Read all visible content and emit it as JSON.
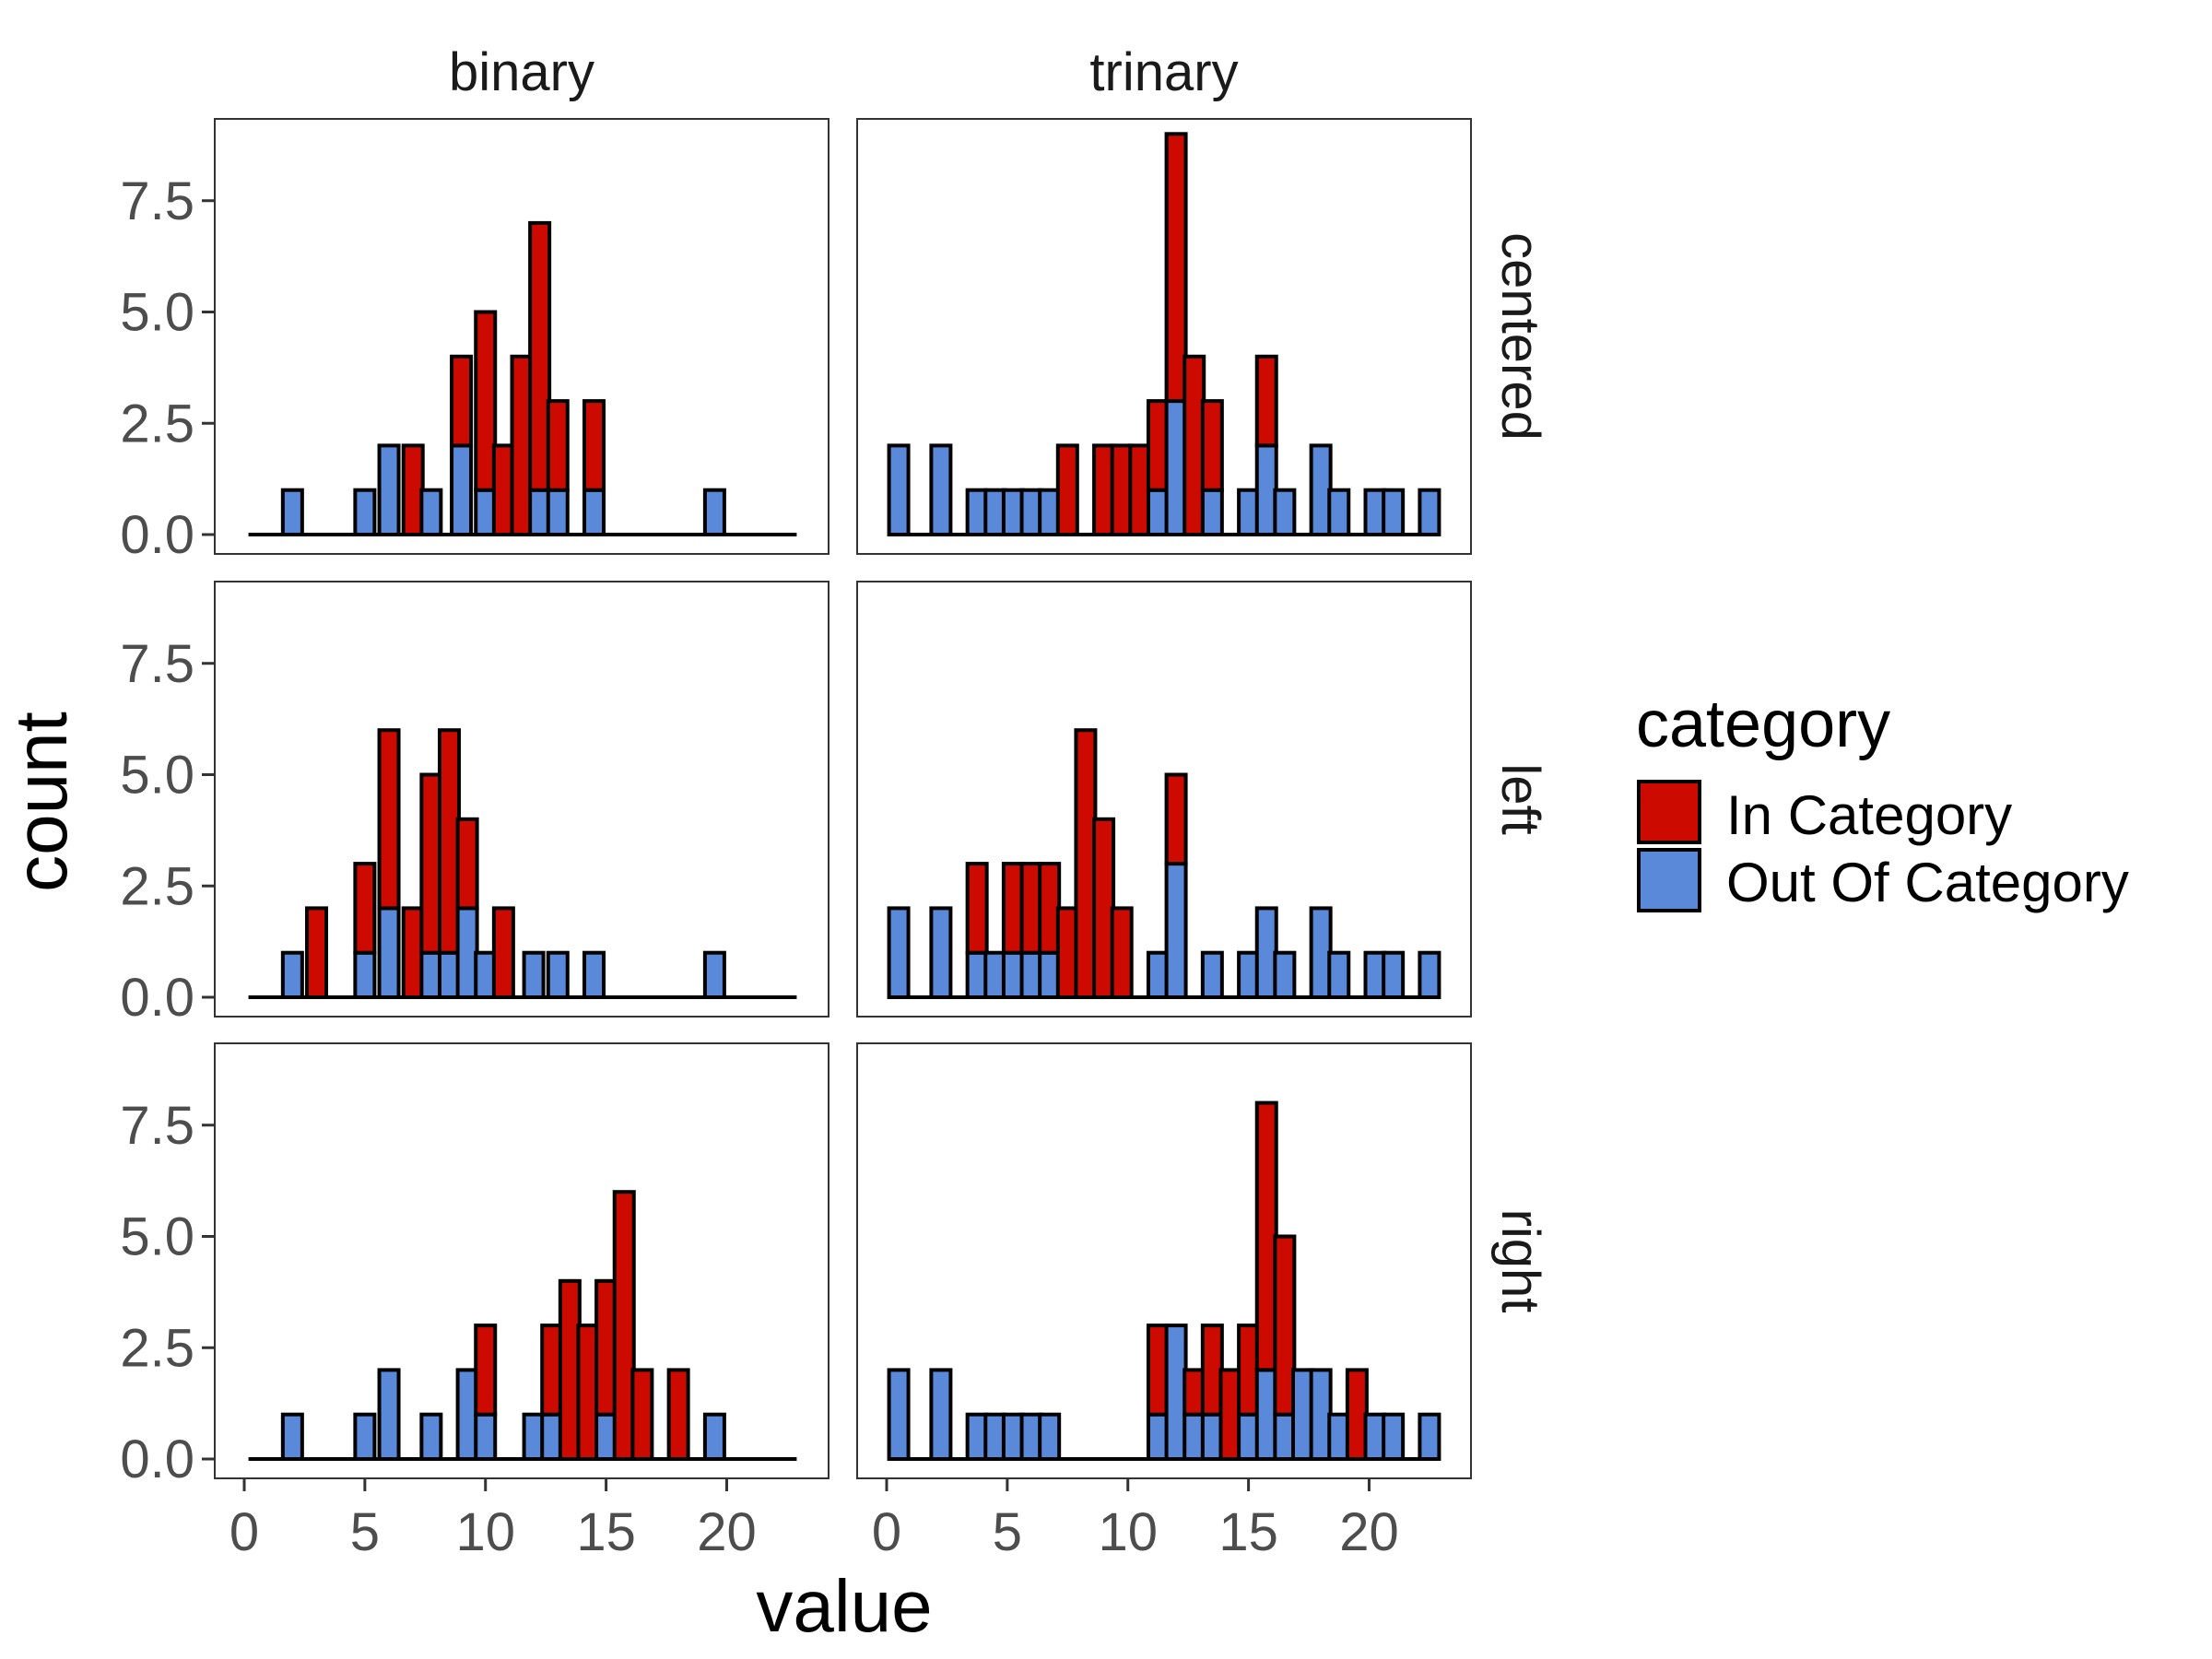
{
  "chart_data": {
    "type": "bar",
    "stacked": true,
    "facet_columns": [
      "binary",
      "trinary"
    ],
    "facet_rows": [
      "centered",
      "left",
      "right"
    ],
    "xlabel": "value",
    "ylabel": "count",
    "xlim": [
      0,
      23
    ],
    "ylim": [
      0,
      9
    ],
    "x_ticks": [
      "0",
      "5",
      "10",
      "15",
      "20"
    ],
    "y_ticks": [
      "0.0",
      "2.5",
      "5.0",
      "7.5"
    ],
    "legend": {
      "title": "category",
      "position": "right",
      "items": [
        {
          "label": "In Category",
          "color": "#cc0a00"
        },
        {
          "label": "Out Of Category",
          "color": "#5b89d9"
        }
      ]
    },
    "colors": {
      "in": "#cc0a00",
      "out": "#5b89d9",
      "outline": "#000000"
    },
    "panels": [
      {
        "col": "binary",
        "row": "centered",
        "bars": [
          {
            "x": 2,
            "out": 1,
            "in": 0
          },
          {
            "x": 5,
            "out": 1,
            "in": 0
          },
          {
            "x": 6,
            "out": 2,
            "in": 0
          },
          {
            "x": 7,
            "out": 0,
            "in": 2
          },
          {
            "x": 7.75,
            "out": 1,
            "in": 0
          },
          {
            "x": 9,
            "out": 2,
            "in": 2
          },
          {
            "x": 10,
            "out": 1,
            "in": 4
          },
          {
            "x": 10.75,
            "out": 0,
            "in": 2
          },
          {
            "x": 11.5,
            "out": 0,
            "in": 4
          },
          {
            "x": 12.25,
            "out": 1,
            "in": 6
          },
          {
            "x": 13,
            "out": 1,
            "in": 2
          },
          {
            "x": 14.5,
            "out": 1,
            "in": 2
          },
          {
            "x": 19.5,
            "out": 1,
            "in": 0
          }
        ]
      },
      {
        "col": "trinary",
        "row": "centered",
        "bars": [
          {
            "x": 0.5,
            "out": 2,
            "in": 0
          },
          {
            "x": 2.25,
            "out": 2,
            "in": 0
          },
          {
            "x": 3.75,
            "out": 1,
            "in": 0
          },
          {
            "x": 4.5,
            "out": 1,
            "in": 0
          },
          {
            "x": 5.25,
            "out": 1,
            "in": 0
          },
          {
            "x": 6,
            "out": 1,
            "in": 0
          },
          {
            "x": 6.75,
            "out": 1,
            "in": 0
          },
          {
            "x": 7.5,
            "out": 0,
            "in": 2
          },
          {
            "x": 9,
            "out": 0,
            "in": 2
          },
          {
            "x": 9.75,
            "out": 0,
            "in": 2
          },
          {
            "x": 10.5,
            "out": 0,
            "in": 2
          },
          {
            "x": 11.25,
            "out": 1,
            "in": 2
          },
          {
            "x": 12,
            "out": 3,
            "in": 6
          },
          {
            "x": 12.75,
            "out": 0,
            "in": 4
          },
          {
            "x": 13.5,
            "out": 1,
            "in": 2
          },
          {
            "x": 15,
            "out": 1,
            "in": 0
          },
          {
            "x": 15.75,
            "out": 2,
            "in": 2
          },
          {
            "x": 16.5,
            "out": 1,
            "in": 0
          },
          {
            "x": 18,
            "out": 2,
            "in": 0
          },
          {
            "x": 18.75,
            "out": 1,
            "in": 0
          },
          {
            "x": 20.25,
            "out": 1,
            "in": 0
          },
          {
            "x": 21,
            "out": 1,
            "in": 0
          },
          {
            "x": 22.5,
            "out": 1,
            "in": 0
          }
        ]
      },
      {
        "col": "binary",
        "row": "left",
        "bars": [
          {
            "x": 2,
            "out": 1,
            "in": 0
          },
          {
            "x": 3,
            "out": 0,
            "in": 2
          },
          {
            "x": 5,
            "out": 1,
            "in": 2
          },
          {
            "x": 6,
            "out": 2,
            "in": 4
          },
          {
            "x": 7,
            "out": 0,
            "in": 2
          },
          {
            "x": 7.75,
            "out": 1,
            "in": 4
          },
          {
            "x": 8.5,
            "out": 1,
            "in": 5
          },
          {
            "x": 9.25,
            "out": 2,
            "in": 2
          },
          {
            "x": 10,
            "out": 1,
            "in": 0
          },
          {
            "x": 10.75,
            "out": 0,
            "in": 2
          },
          {
            "x": 12,
            "out": 1,
            "in": 0
          },
          {
            "x": 13,
            "out": 1,
            "in": 0
          },
          {
            "x": 14.5,
            "out": 1,
            "in": 0
          },
          {
            "x": 19.5,
            "out": 1,
            "in": 0
          }
        ]
      },
      {
        "col": "trinary",
        "row": "left",
        "bars": [
          {
            "x": 0.5,
            "out": 2,
            "in": 0
          },
          {
            "x": 2.25,
            "out": 2,
            "in": 0
          },
          {
            "x": 3.75,
            "out": 1,
            "in": 2
          },
          {
            "x": 4.5,
            "out": 1,
            "in": 0
          },
          {
            "x": 5.25,
            "out": 1,
            "in": 2
          },
          {
            "x": 6,
            "out": 1,
            "in": 2
          },
          {
            "x": 6.75,
            "out": 1,
            "in": 2
          },
          {
            "x": 7.5,
            "out": 0,
            "in": 2
          },
          {
            "x": 8.25,
            "out": 0,
            "in": 6
          },
          {
            "x": 9,
            "out": 0,
            "in": 4
          },
          {
            "x": 9.75,
            "out": 0,
            "in": 2
          },
          {
            "x": 11.25,
            "out": 1,
            "in": 0
          },
          {
            "x": 12,
            "out": 3,
            "in": 2
          },
          {
            "x": 13.5,
            "out": 1,
            "in": 0
          },
          {
            "x": 15,
            "out": 1,
            "in": 0
          },
          {
            "x": 15.75,
            "out": 2,
            "in": 0
          },
          {
            "x": 16.5,
            "out": 1,
            "in": 0
          },
          {
            "x": 18,
            "out": 2,
            "in": 0
          },
          {
            "x": 18.75,
            "out": 1,
            "in": 0
          },
          {
            "x": 20.25,
            "out": 1,
            "in": 0
          },
          {
            "x": 21,
            "out": 1,
            "in": 0
          },
          {
            "x": 22.5,
            "out": 1,
            "in": 0
          }
        ]
      },
      {
        "col": "binary",
        "row": "right",
        "bars": [
          {
            "x": 2,
            "out": 1,
            "in": 0
          },
          {
            "x": 5,
            "out": 1,
            "in": 0
          },
          {
            "x": 6,
            "out": 2,
            "in": 0
          },
          {
            "x": 7.75,
            "out": 1,
            "in": 0
          },
          {
            "x": 9.25,
            "out": 2,
            "in": 0
          },
          {
            "x": 10,
            "out": 1,
            "in": 2
          },
          {
            "x": 12,
            "out": 1,
            "in": 0
          },
          {
            "x": 12.75,
            "out": 1,
            "in": 2
          },
          {
            "x": 13.5,
            "out": 0,
            "in": 4
          },
          {
            "x": 14.25,
            "out": 0,
            "in": 3
          },
          {
            "x": 15,
            "out": 1,
            "in": 3
          },
          {
            "x": 15.75,
            "out": 0,
            "in": 6
          },
          {
            "x": 16.5,
            "out": 0,
            "in": 2
          },
          {
            "x": 18,
            "out": 0,
            "in": 2
          },
          {
            "x": 19.5,
            "out": 1,
            "in": 0
          }
        ]
      },
      {
        "col": "trinary",
        "row": "right",
        "bars": [
          {
            "x": 0.5,
            "out": 2,
            "in": 0
          },
          {
            "x": 2.25,
            "out": 2,
            "in": 0
          },
          {
            "x": 3.75,
            "out": 1,
            "in": 0
          },
          {
            "x": 4.5,
            "out": 1,
            "in": 0
          },
          {
            "x": 5.25,
            "out": 1,
            "in": 0
          },
          {
            "x": 6,
            "out": 1,
            "in": 0
          },
          {
            "x": 6.75,
            "out": 1,
            "in": 0
          },
          {
            "x": 11.25,
            "out": 1,
            "in": 2
          },
          {
            "x": 12,
            "out": 3,
            "in": 0
          },
          {
            "x": 12.75,
            "out": 1,
            "in": 1
          },
          {
            "x": 13.5,
            "out": 1,
            "in": 2
          },
          {
            "x": 14.25,
            "out": 0,
            "in": 2
          },
          {
            "x": 15,
            "out": 1,
            "in": 2
          },
          {
            "x": 15.75,
            "out": 2,
            "in": 6
          },
          {
            "x": 16.5,
            "out": 1,
            "in": 4
          },
          {
            "x": 17.25,
            "out": 2,
            "in": 0
          },
          {
            "x": 18,
            "out": 2,
            "in": 0
          },
          {
            "x": 18.75,
            "out": 1,
            "in": 0
          },
          {
            "x": 19.5,
            "out": 0,
            "in": 2
          },
          {
            "x": 20.25,
            "out": 1,
            "in": 0
          },
          {
            "x": 21,
            "out": 1,
            "in": 0
          },
          {
            "x": 22.5,
            "out": 1,
            "in": 0
          }
        ]
      }
    ]
  }
}
